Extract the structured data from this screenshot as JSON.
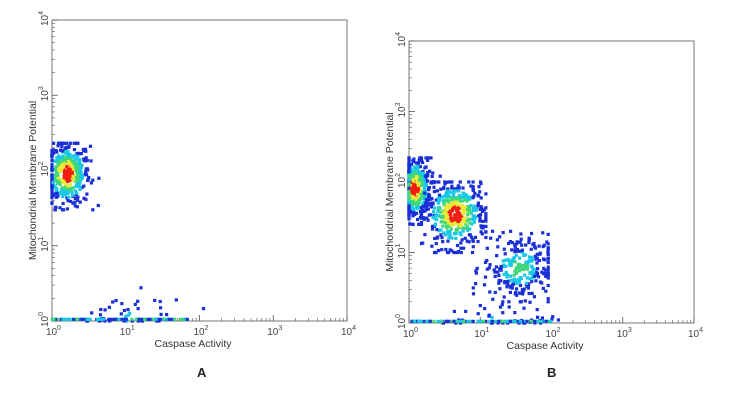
{
  "chart_data": [
    {
      "type": "scatter",
      "density_colored": true,
      "panel_label": "A",
      "xlabel": "Caspase Activity",
      "ylabel": "Mitochondrial Membrane Potential",
      "xscale": "log",
      "yscale": "log",
      "xlim": [
        1,
        10000
      ],
      "ylim": [
        1,
        10000
      ],
      "x_ticks": [
        1,
        10,
        100,
        1000,
        10000
      ],
      "y_ticks": [
        1,
        10,
        100,
        1000,
        10000
      ],
      "grid": false,
      "clusters": [
        {
          "x_center": 1.6,
          "y_center": 90,
          "x_range": [
            1,
            4.5
          ],
          "y_range": [
            30,
            230
          ],
          "density": "high"
        },
        {
          "x_center": 12,
          "y_center": 1.15,
          "x_range": [
            3,
            150
          ],
          "y_range": [
            1,
            4.5
          ],
          "density": "low"
        }
      ]
    },
    {
      "type": "scatter",
      "density_colored": true,
      "panel_label": "B",
      "xlabel": "Caspase Activity",
      "ylabel": "Mitochondrial Membrane Potential",
      "xscale": "log",
      "yscale": "log",
      "xlim": [
        1,
        10000
      ],
      "ylim": [
        1,
        10000
      ],
      "x_ticks": [
        1,
        10,
        100,
        1000,
        10000
      ],
      "y_ticks": [
        1,
        10,
        100,
        1000,
        10000
      ],
      "grid": false,
      "clusters": [
        {
          "x_center": 1.2,
          "y_center": 80,
          "x_range": [
            1,
            3
          ],
          "y_range": [
            25,
            220
          ],
          "density": "high"
        },
        {
          "x_center": 4.5,
          "y_center": 35,
          "x_range": [
            1.5,
            12
          ],
          "y_range": [
            10,
            100
          ],
          "density": "high"
        },
        {
          "x_center": 35,
          "y_center": 6,
          "x_range": [
            8,
            90
          ],
          "y_range": [
            2,
            20
          ],
          "density": "medium"
        },
        {
          "x_center": 20,
          "y_center": 1.2,
          "x_range": [
            3,
            150
          ],
          "y_range": [
            1,
            3
          ],
          "density": "low"
        }
      ]
    }
  ],
  "colors": {
    "density_low": "#1a2fd6",
    "density_mid_low": "#18c8e6",
    "density_mid": "#3ed87a",
    "density_mid_high": "#e8e83a",
    "density_high": "#f01e10",
    "axis": "#555555"
  }
}
